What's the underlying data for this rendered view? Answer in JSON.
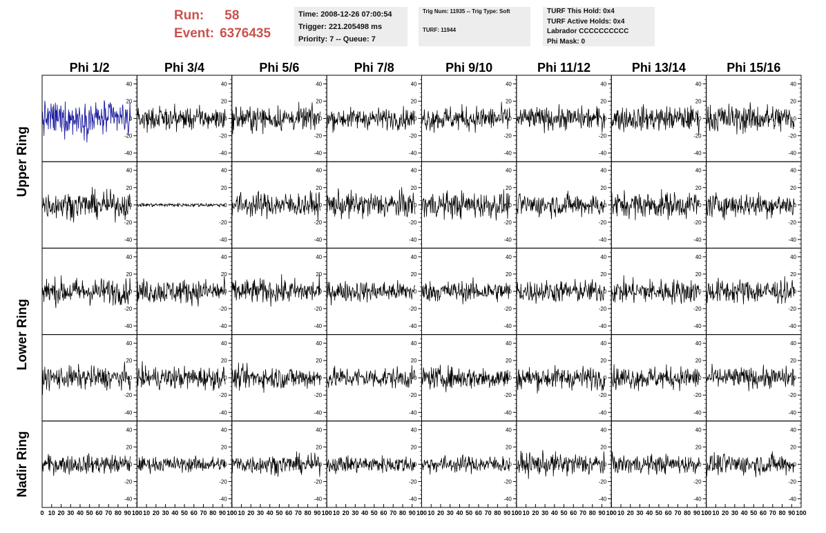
{
  "header": {
    "run_label": "Run:",
    "run_value": "58",
    "event_label": "Event:",
    "event_value": "6376435",
    "time": "Time: 2008-12-26 07:00:54",
    "trigger": "Trigger: 221.205498 ms",
    "priority": "Priority: 7 -- Queue: 7",
    "trig_num": "Trig Num: 11935 -- Trig Type: Soft",
    "turf": "TURF: 11944",
    "turf_hold": "TURF This Hold: 0x4",
    "turf_active": "TURF Active Holds: 0x4",
    "labrador": "Labrador CCCCCCCCCC",
    "phi_mask": "Phi Mask: 0"
  },
  "chart_data": {
    "type": "line",
    "columns": [
      "Phi 1/2",
      "Phi 3/4",
      "Phi 5/6",
      "Phi 7/8",
      "Phi 9/10",
      "Phi 11/12",
      "Phi 13/14",
      "Phi 15/16"
    ],
    "rows": [
      "Upper Ring",
      "Upper Ring",
      "Lower Ring",
      "Lower Ring",
      "Nadir Ring"
    ],
    "row_titles": [
      "Upper Ring",
      "Lower Ring",
      "Nadir Ring"
    ],
    "xlim": [
      0,
      100
    ],
    "ylim": [
      -50,
      50
    ],
    "x_ticks": [
      "0",
      "10",
      "20",
      "30",
      "40",
      "50",
      "60",
      "70",
      "80",
      "90",
      "100"
    ],
    "y_ticks": [
      "-40",
      "-20",
      "0",
      "20",
      "40"
    ],
    "highlight": {
      "row": 0,
      "col": 0,
      "color": "#1a1aa0"
    },
    "trace_color": "#000000",
    "amplitudes": [
      [
        18,
        12,
        13,
        11,
        13,
        12,
        13,
        15
      ],
      [
        14,
        2,
        13,
        14,
        14,
        12,
        14,
        13
      ],
      [
        14,
        13,
        13,
        11,
        11,
        12,
        13,
        13
      ],
      [
        12,
        12,
        12,
        11,
        12,
        12,
        12,
        11
      ],
      [
        10,
        8,
        10,
        9,
        9,
        12,
        10,
        11
      ]
    ]
  }
}
